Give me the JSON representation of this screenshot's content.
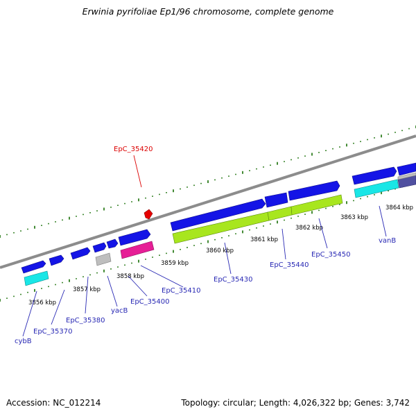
{
  "header": {
    "title": "Erwinia pyrifoliae Ep1/96 chromosome, complete genome"
  },
  "footer": {
    "accession": "Accession: NC_012214",
    "summary": "Topology: circular; Length: 4,026,322 bp; Genes: 3,742"
  },
  "colors": {
    "backbone": "#8c8c8c",
    "cds": "#1414e6",
    "gene_cyan": "#19e6e6",
    "misc_lime": "#a8e61e",
    "rna_magenta": "#e61e96",
    "pseudo_gray": "#bebebe",
    "ticks": "#2e7d1e",
    "label_blue": "#2828b4",
    "label_red": "#dc0000"
  },
  "scale_labels": [
    "3856 kbp",
    "3857 kbp",
    "3858 kbp",
    "3859 kbp",
    "3860 kbp",
    "3861 kbp",
    "3862 kbp",
    "3863 kbp",
    "3864 kbp"
  ],
  "gene_labels": [
    "cybB",
    "EpC_35370",
    "EpC_35380",
    "yacB",
    "EpC_35400",
    "EpC_35410",
    "EpC_35420",
    "EpC_35430",
    "EpC_35440",
    "EpC_35450",
    "vanB"
  ]
}
